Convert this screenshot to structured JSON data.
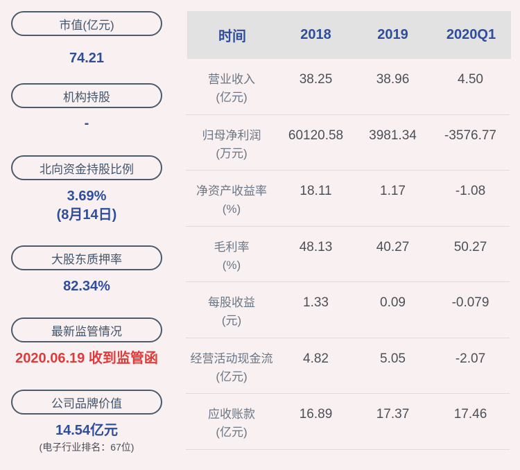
{
  "colors": {
    "page_bg": "#f9f1f1",
    "accent_blue": "#2e4d9b",
    "alert_red": "#e03b3b",
    "pill_border": "#4b5a6a",
    "pill_text": "#44546a",
    "table_header_bg": "#e2e2e3",
    "row_label": "#6a7585",
    "row_value": "#4b5058",
    "separator": "#dcdcdc"
  },
  "sidebar": {
    "items": [
      {
        "id": "market-cap",
        "label": "市值(亿元)",
        "value": "74.21",
        "style": "blue",
        "sub": "",
        "sub_style": ""
      },
      {
        "id": "institutional-holding",
        "label": "机构持股",
        "value": "-",
        "style": "blue",
        "sub": "",
        "sub_style": ""
      },
      {
        "id": "northbound-holding-ratio",
        "label": "北向资金持股比例",
        "value": "3.69%",
        "style": "blue",
        "sub": "(8月14日)",
        "sub_style": "blue-bold"
      },
      {
        "id": "major-shareholder-pledge-ratio",
        "label": "大股东质押率",
        "value": "82.34%",
        "style": "blue",
        "sub": "",
        "sub_style": ""
      },
      {
        "id": "latest-regulatory-status",
        "label": "最新监管情况",
        "value": "2020.06.19 收到监管函",
        "style": "red",
        "sub": "",
        "sub_style": ""
      },
      {
        "id": "brand-value",
        "label": "公司品牌价值",
        "value": "14.54亿元",
        "style": "blue",
        "sub": "(电子行业排名：67位)",
        "sub_style": "gray"
      }
    ]
  },
  "table": {
    "header": [
      "时间",
      "2018",
      "2019",
      "2020Q1"
    ],
    "rows": [
      {
        "id": "revenue",
        "name": "营业收入",
        "unit": "(亿元)",
        "values": [
          "38.25",
          "38.96",
          "4.50"
        ]
      },
      {
        "id": "net-profit",
        "name": "归母净利润",
        "unit": "(万元)",
        "values": [
          "60120.58",
          "3981.34",
          "-3576.77"
        ]
      },
      {
        "id": "roe",
        "name": "净资产收益率",
        "unit": "(%)",
        "values": [
          "18.11",
          "1.17",
          "-1.08"
        ]
      },
      {
        "id": "gross-margin",
        "name": "毛利率",
        "unit": "(%)",
        "values": [
          "48.13",
          "40.27",
          "50.27"
        ]
      },
      {
        "id": "eps",
        "name": "每股收益",
        "unit": "(元)",
        "values": [
          "1.33",
          "0.09",
          "-0.079"
        ]
      },
      {
        "id": "operating-cash-flow",
        "name": "经营活动现金流",
        "unit": "(亿元)",
        "values": [
          "4.82",
          "5.05",
          "-2.07"
        ]
      },
      {
        "id": "accounts-receivable",
        "name": "应收账款",
        "unit": "(亿元)",
        "values": [
          "16.89",
          "17.37",
          "17.46"
        ]
      }
    ]
  },
  "chart_data": {
    "type": "table",
    "columns": [
      "时间",
      "2018",
      "2019",
      "2020Q1"
    ],
    "rows": [
      {
        "metric": "营业收入(亿元)",
        "values": [
          38.25,
          38.96,
          4.5
        ]
      },
      {
        "metric": "归母净利润(万元)",
        "values": [
          60120.58,
          3981.34,
          -3576.77
        ]
      },
      {
        "metric": "净资产收益率(%)",
        "values": [
          18.11,
          1.17,
          -1.08
        ]
      },
      {
        "metric": "毛利率(%)",
        "values": [
          48.13,
          40.27,
          50.27
        ]
      },
      {
        "metric": "每股收益(元)",
        "values": [
          1.33,
          0.09,
          -0.079
        ]
      },
      {
        "metric": "经营活动现金流(亿元)",
        "values": [
          4.82,
          5.05,
          -2.07
        ]
      },
      {
        "metric": "应收账款(亿元)",
        "values": [
          16.89,
          17.37,
          17.46
        ]
      }
    ],
    "stats": [
      {
        "label": "市值(亿元)",
        "value": "74.21"
      },
      {
        "label": "机构持股",
        "value": "-"
      },
      {
        "label": "北向资金持股比例",
        "value": "3.69% (8月14日)"
      },
      {
        "label": "大股东质押率",
        "value": "82.34%"
      },
      {
        "label": "最新监管情况",
        "value": "2020.06.19 收到监管函"
      },
      {
        "label": "公司品牌价值",
        "value": "14.54亿元 (电子行业排名：67位)"
      }
    ]
  }
}
